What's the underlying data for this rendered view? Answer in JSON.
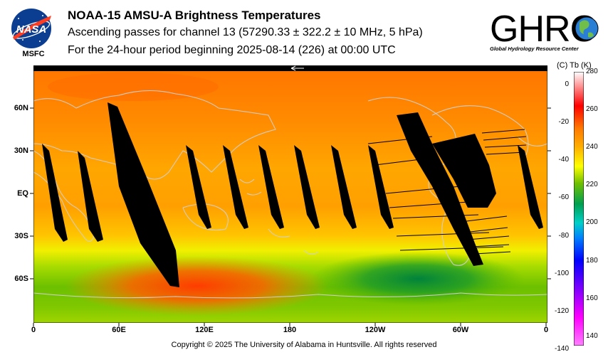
{
  "header": {
    "title": "NOAA-15 AMSU-A Brightness Temperatures",
    "subtitle": "Ascending passes for channel 13 (57290.33 ± 322.2 ± 10 MHz, 5 hPa)",
    "period": "For the 24-hour period beginning 2025-08-14 (226) at 00:00 UTC"
  },
  "logos": {
    "nasa_text": "NASA",
    "nasa_label": "MSFC",
    "ghrc_text": "GHRC",
    "ghrc_subtitle": "Global Hydrology Resource Center"
  },
  "map": {
    "lat_labels": [
      "60N",
      "30N",
      "EQ",
      "30S",
      "60S"
    ],
    "lon_labels": [
      "0",
      "60E",
      "120E",
      "180",
      "120W",
      "60W",
      "0"
    ],
    "colors": {
      "no_data": "#000000",
      "coastline": "#c8c8c8"
    }
  },
  "colorbar": {
    "header": "(C)  Tb  (K)",
    "celsius_ticks": [
      "0",
      "-20",
      "-40",
      "-60",
      "-80",
      "-100",
      "-120",
      "-140"
    ],
    "kelvin_ticks": [
      "280",
      "260",
      "240",
      "220",
      "200",
      "180",
      "160",
      "140"
    ],
    "k_range": [
      135,
      280
    ],
    "stops": [
      {
        "k": 280,
        "color": "#ffffff"
      },
      {
        "k": 262,
        "color": "#ff0000"
      },
      {
        "k": 250,
        "color": "#ff7a00"
      },
      {
        "k": 240,
        "color": "#ffb000"
      },
      {
        "k": 230,
        "color": "#ffff00"
      },
      {
        "k": 221,
        "color": "#70c000"
      },
      {
        "k": 210,
        "color": "#00a050"
      },
      {
        "k": 200,
        "color": "#00d0c8"
      },
      {
        "k": 192,
        "color": "#0080ff"
      },
      {
        "k": 180,
        "color": "#0000ff"
      },
      {
        "k": 165,
        "color": "#8000ff"
      },
      {
        "k": 150,
        "color": "#ff00ff"
      },
      {
        "k": 135,
        "color": "#ff80ff"
      }
    ]
  },
  "footer": {
    "copyright": "Copyright © 2025 The University of Alabama in Huntsville.  All rights reserved"
  }
}
